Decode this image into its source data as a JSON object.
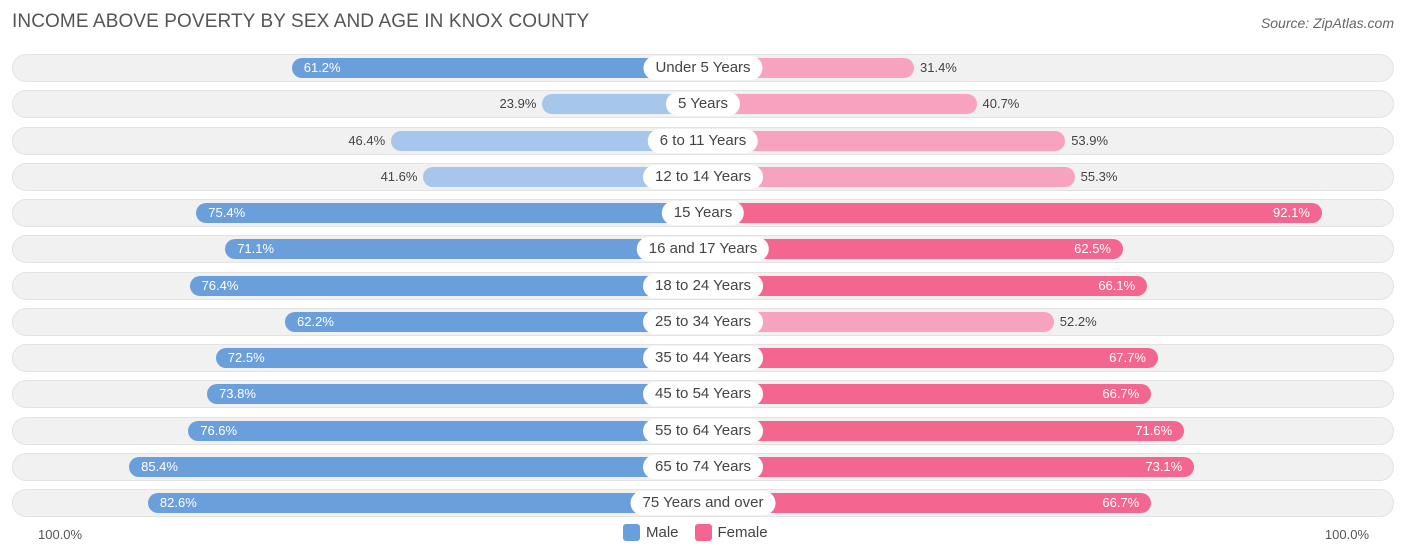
{
  "title": "INCOME ABOVE POVERTY BY SEX AND AGE IN KNOX COUNTY",
  "source": "Source: ZipAtlas.com",
  "axis": {
    "left_label": "100.0%",
    "right_label": "100.0%"
  },
  "legend": {
    "male": "Male",
    "female": "Female"
  },
  "colors": {
    "male_strong": "#6a9fdc",
    "male_light": "#a7c6eb",
    "female_strong": "#f3668f",
    "female_light": "#f7a3bf"
  },
  "chart_data": {
    "type": "bar",
    "orientation": "horizontal-diverging",
    "xlim": [
      -100,
      100
    ],
    "categories": [
      "Under 5 Years",
      "5 Years",
      "6 to 11 Years",
      "12 to 14 Years",
      "15 Years",
      "16 and 17 Years",
      "18 to 24 Years",
      "25 to 34 Years",
      "35 to 44 Years",
      "45 to 54 Years",
      "55 to 64 Years",
      "65 to 74 Years",
      "75 Years and over"
    ],
    "series": [
      {
        "name": "Male",
        "values": [
          61.2,
          23.9,
          46.4,
          41.6,
          75.4,
          71.1,
          76.4,
          62.2,
          72.5,
          73.8,
          76.6,
          85.4,
          82.6
        ],
        "labels": [
          "61.2%",
          "23.9%",
          "46.4%",
          "41.6%",
          "75.4%",
          "71.1%",
          "76.4%",
          "62.2%",
          "72.5%",
          "73.8%",
          "76.6%",
          "85.4%",
          "82.6%"
        ]
      },
      {
        "name": "Female",
        "values": [
          31.4,
          40.7,
          53.9,
          55.3,
          92.1,
          62.5,
          66.1,
          52.2,
          67.7,
          66.7,
          71.6,
          73.1,
          66.7
        ],
        "labels": [
          "31.4%",
          "40.7%",
          "53.9%",
          "55.3%",
          "92.1%",
          "62.5%",
          "66.1%",
          "52.2%",
          "67.7%",
          "66.7%",
          "71.6%",
          "73.1%",
          "66.7%"
        ]
      }
    ],
    "legend_position": "bottom-center"
  }
}
